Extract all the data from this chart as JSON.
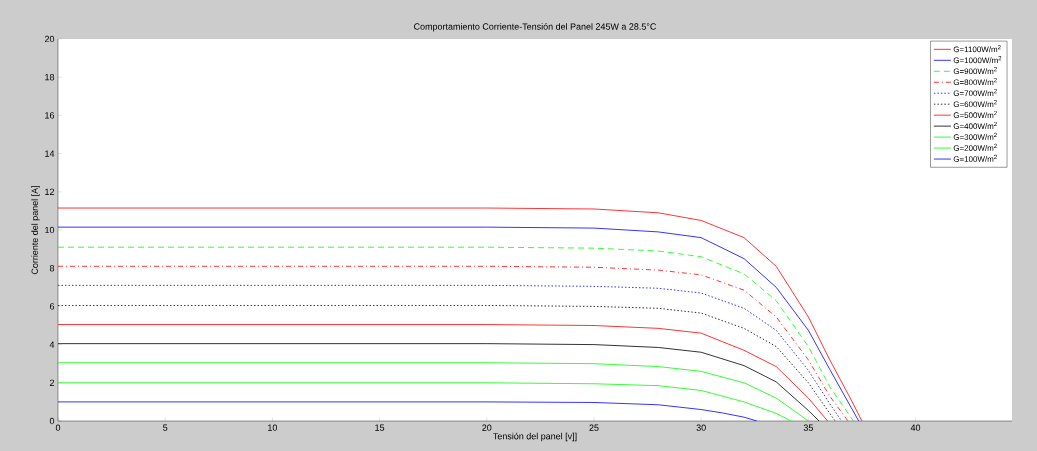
{
  "chart_data": {
    "type": "line",
    "title": "Comportamiento Corriente-Tensión del Panel 245W a 28.5°C",
    "xlabel": "Tensión del panel [v]]",
    "ylabel": "Corriente del panel [A]",
    "xlim": [
      0,
      44.5
    ],
    "ylim": [
      0,
      20
    ],
    "xticks": [
      0,
      5,
      10,
      15,
      20,
      25,
      30,
      35,
      40
    ],
    "yticks": [
      0,
      2,
      4,
      6,
      8,
      10,
      12,
      14,
      16,
      18,
      20
    ],
    "grid": false,
    "legend": "top right",
    "marker": "none",
    "series": [
      {
        "name": "G=1100W/m$^{2}$",
        "color": "#ff0000",
        "line_style": "solid",
        "x": [
          0,
          20,
          25,
          28,
          30,
          32,
          33.5,
          35,
          36,
          37,
          37.5
        ],
        "values": [
          11.15,
          11.15,
          11.1,
          10.9,
          10.5,
          9.6,
          8.1,
          5.45,
          3.2,
          1.1,
          0
        ]
      },
      {
        "name": "G=1000W/m$^{2}$",
        "color": "#0000ff",
        "line_style": "solid",
        "x": [
          0,
          20,
          25,
          28,
          30,
          32,
          33.5,
          35,
          36,
          37,
          37.35
        ],
        "values": [
          10.15,
          10.15,
          10.1,
          9.9,
          9.6,
          8.5,
          7.0,
          4.75,
          2.7,
          0.7,
          0
        ]
      },
      {
        "name": "G=900W/m$^{2}$",
        "color": "#00ff00",
        "line_style": "dashed",
        "x": [
          0,
          20,
          25,
          28,
          30,
          32,
          33.5,
          35,
          36,
          37.1
        ],
        "values": [
          9.1,
          9.1,
          9.05,
          8.9,
          8.6,
          7.7,
          6.3,
          3.9,
          1.8,
          0
        ]
      },
      {
        "name": "G=800W/m$^{2}$",
        "color": "#ff0000",
        "line_style": "dashdot",
        "x": [
          0,
          20,
          25,
          28,
          30,
          32,
          33.5,
          35,
          36,
          36.85
        ],
        "values": [
          8.1,
          8.1,
          8.05,
          7.9,
          7.65,
          6.85,
          5.45,
          3.2,
          1.3,
          0
        ]
      },
      {
        "name": "G=700W/m$^{2}$",
        "color": "#0000ff",
        "line_style": "dotted",
        "x": [
          0,
          20,
          25,
          28,
          30,
          32,
          33.5,
          35,
          36,
          36.55
        ],
        "values": [
          7.1,
          7.1,
          7.05,
          6.95,
          6.7,
          5.9,
          4.75,
          2.65,
          0.9,
          0
        ]
      },
      {
        "name": "G=600W/m$^{2}$",
        "color": "#000000",
        "line_style": "dotted",
        "x": [
          0,
          20,
          25,
          28,
          30,
          32,
          33.5,
          35,
          36,
          36.25
        ],
        "values": [
          6.05,
          6.05,
          6.0,
          5.9,
          5.65,
          4.85,
          3.9,
          2.0,
          0.4,
          0
        ]
      },
      {
        "name": "G=500W/m$^{2}$",
        "color": "#ff0000",
        "line_style": "solid",
        "x": [
          0,
          20,
          25,
          28,
          30,
          32,
          33.5,
          35,
          35.9
        ],
        "values": [
          5.05,
          5.05,
          5.0,
          4.85,
          4.6,
          3.7,
          2.85,
          1.2,
          0
        ]
      },
      {
        "name": "G=400W/m$^{2}$",
        "color": "#000000",
        "line_style": "solid",
        "x": [
          0,
          20,
          25,
          28,
          30,
          32,
          33.5,
          35,
          35.5
        ],
        "values": [
          4.05,
          4.05,
          4.0,
          3.85,
          3.6,
          2.9,
          2.05,
          0.55,
          0
        ]
      },
      {
        "name": "G=300W/m$^{2}$",
        "color": "#00ff00",
        "line_style": "solid",
        "x": [
          0,
          20,
          25,
          28,
          30,
          32,
          33.5,
          34.5,
          35.0
        ],
        "values": [
          3.05,
          3.05,
          3.0,
          2.85,
          2.6,
          2.0,
          1.2,
          0.4,
          0
        ]
      },
      {
        "name": "G=200W/m$^{2}$",
        "color": "#00ff00",
        "line_style": "solid",
        "x": [
          0,
          20,
          25,
          28,
          30,
          32,
          33.5,
          34.2
        ],
        "values": [
          2.0,
          2.0,
          1.95,
          1.85,
          1.6,
          1.0,
          0.4,
          0
        ]
      },
      {
        "name": "G=100W/m$^{2}$",
        "color": "#0000ff",
        "line_style": "solid",
        "x": [
          0,
          20,
          25,
          28,
          30,
          31,
          32,
          32.6
        ],
        "values": [
          1.0,
          1.0,
          0.97,
          0.85,
          0.6,
          0.42,
          0.2,
          0
        ]
      }
    ]
  }
}
